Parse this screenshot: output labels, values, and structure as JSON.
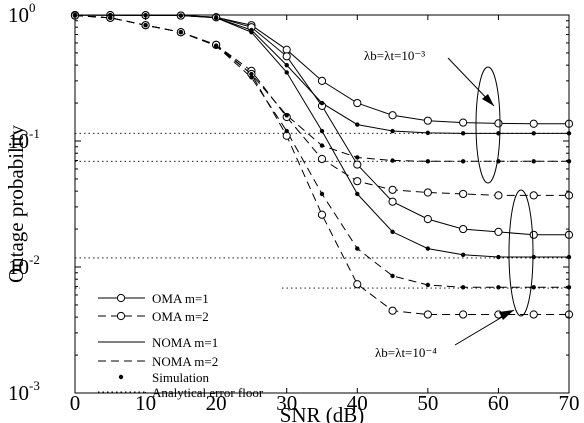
{
  "chart_data": {
    "type": "line",
    "xlabel": "SNR (dB)",
    "ylabel": "Outage probability",
    "xlim": [
      0,
      70
    ],
    "ylim": [
      0.001,
      1
    ],
    "yscale": "log",
    "grid": false,
    "legend_position": "bottom-left",
    "x_ticks": [
      "0",
      "10",
      "20",
      "30",
      "40",
      "50",
      "60",
      "70"
    ],
    "y_ticks": [
      {
        "base": "10",
        "exp": "0"
      },
      {
        "base": "10",
        "exp": "-1"
      },
      {
        "base": "10",
        "exp": "-2"
      },
      {
        "base": "10",
        "exp": "-3"
      }
    ],
    "legend": [
      {
        "label": "OMA m=1",
        "style": "solid-circle"
      },
      {
        "label": "OMA m=2",
        "style": "dash-circle"
      },
      {
        "label": "NOMA m=1",
        "style": "solid"
      },
      {
        "label": "NOMA m=2",
        "style": "dash"
      },
      {
        "label": "Simulation",
        "style": "dot"
      },
      {
        "label": "Analytical error floor",
        "style": "dotted"
      }
    ],
    "annotations": [
      {
        "label": "λb=λt=10⁻³"
      },
      {
        "label": "λb=λt=10⁻⁴"
      }
    ],
    "floors": [
      0.115,
      0.069,
      0.0118,
      0.0068
    ],
    "series": [
      {
        "scheme": "OMA",
        "m": 1,
        "lambda": "1e-3",
        "x": [
          0,
          5,
          10,
          15,
          20,
          25,
          30,
          35,
          40,
          45,
          50,
          55,
          60,
          65,
          70
        ],
        "y": [
          0.999,
          0.998,
          0.995,
          0.99,
          0.96,
          0.83,
          0.53,
          0.3,
          0.2,
          0.16,
          0.145,
          0.14,
          0.138,
          0.137,
          0.137
        ]
      },
      {
        "scheme": "OMA",
        "m": 2,
        "lambda": "1e-3",
        "x": [
          0,
          5,
          10,
          15,
          20,
          25,
          30,
          35,
          40,
          45,
          50,
          55,
          60,
          65,
          70
        ],
        "y": [
          0.99,
          0.95,
          0.83,
          0.73,
          0.58,
          0.36,
          0.155,
          0.072,
          0.048,
          0.041,
          0.039,
          0.038,
          0.037,
          0.037,
          0.037
        ]
      },
      {
        "scheme": "OMA",
        "m": 1,
        "lambda": "1e-4",
        "x": [
          0,
          5,
          10,
          15,
          20,
          25,
          30,
          35,
          40,
          45,
          50,
          55,
          60,
          65,
          70
        ],
        "y": [
          0.999,
          0.998,
          0.995,
          0.99,
          0.96,
          0.8,
          0.47,
          0.19,
          0.065,
          0.033,
          0.024,
          0.02,
          0.019,
          0.018,
          0.018
        ]
      },
      {
        "scheme": "OMA",
        "m": 2,
        "lambda": "1e-4",
        "x": [
          0,
          5,
          10,
          15,
          20,
          25,
          30,
          35,
          40,
          45,
          50,
          55,
          60,
          65,
          70
        ],
        "y": [
          0.99,
          0.95,
          0.83,
          0.73,
          0.58,
          0.34,
          0.11,
          0.026,
          0.0073,
          0.0045,
          0.0042,
          0.0042,
          0.0042,
          0.0042,
          0.0042
        ]
      },
      {
        "scheme": "NOMA",
        "m": 1,
        "lambda": "1e-3",
        "x": [
          0,
          5,
          10,
          15,
          20,
          25,
          30,
          35,
          40,
          45,
          50,
          55,
          60,
          65,
          70
        ],
        "y": [
          0.999,
          0.998,
          0.995,
          0.99,
          0.95,
          0.76,
          0.4,
          0.2,
          0.135,
          0.12,
          0.116,
          0.115,
          0.115,
          0.115,
          0.115
        ]
      },
      {
        "scheme": "NOMA",
        "m": 2,
        "lambda": "1e-3",
        "x": [
          0,
          5,
          10,
          15,
          20,
          25,
          30,
          35,
          40,
          45,
          50,
          55,
          60,
          65,
          70
        ],
        "y": [
          0.99,
          0.95,
          0.83,
          0.73,
          0.57,
          0.34,
          0.16,
          0.092,
          0.074,
          0.07,
          0.069,
          0.069,
          0.069,
          0.069,
          0.069
        ]
      },
      {
        "scheme": "NOMA",
        "m": 1,
        "lambda": "1e-4",
        "x": [
          0,
          5,
          10,
          15,
          20,
          25,
          30,
          35,
          40,
          45,
          50,
          55,
          60,
          65,
          70
        ],
        "y": [
          0.999,
          0.998,
          0.995,
          0.99,
          0.95,
          0.73,
          0.35,
          0.12,
          0.038,
          0.019,
          0.014,
          0.0125,
          0.012,
          0.012,
          0.012
        ]
      },
      {
        "scheme": "NOMA",
        "m": 2,
        "lambda": "1e-4",
        "x": [
          0,
          5,
          10,
          15,
          20,
          25,
          30,
          35,
          40,
          45,
          50,
          55,
          60,
          65,
          70
        ],
        "y": [
          0.99,
          0.95,
          0.83,
          0.73,
          0.57,
          0.32,
          0.12,
          0.038,
          0.014,
          0.0085,
          0.0072,
          0.0069,
          0.0069,
          0.0069,
          0.0069
        ]
      }
    ]
  }
}
